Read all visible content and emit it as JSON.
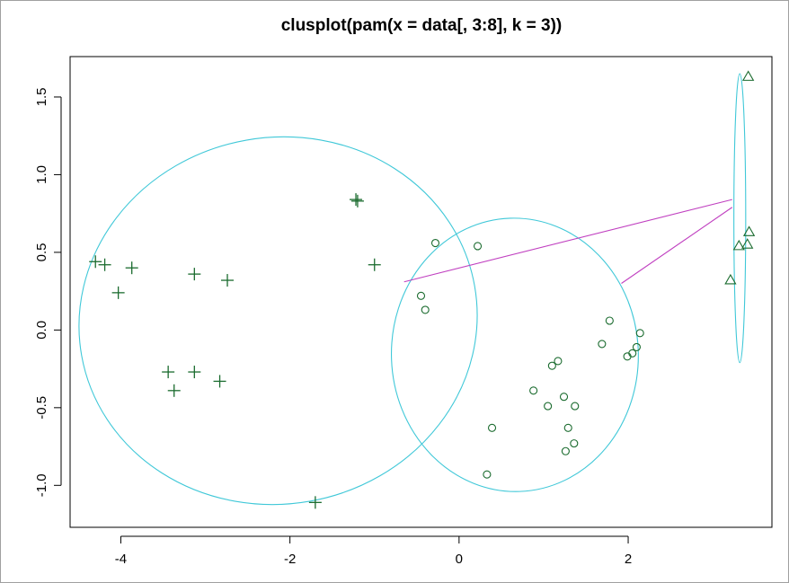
{
  "chart_data": {
    "type": "scatter",
    "title": "clusplot(pam(x = data[, 3:8], k = 3))",
    "xlabel": "",
    "ylabel": "",
    "xlim": [
      -4.6,
      3.7
    ],
    "ylim": [
      -1.27,
      1.76
    ],
    "x_ticks": [
      -4,
      -2,
      0,
      2
    ],
    "x_tick_labels": [
      "-4",
      "-2",
      "0",
      "2"
    ],
    "y_ticks": [
      -1.0,
      -0.5,
      0.0,
      0.5,
      1.0,
      1.5
    ],
    "y_tick_labels": [
      "-1.0",
      "-0.5",
      "0.0",
      "0.5",
      "1.0",
      "1.5"
    ],
    "grid": false,
    "colors": {
      "points": "#1a6b2e",
      "ellipse": "#40c8d8",
      "connector": "#c040c0",
      "axis": "#000000"
    },
    "series": [
      {
        "marker": "plus",
        "points": [
          [
            -4.3,
            0.44
          ],
          [
            -4.19,
            0.42
          ],
          [
            -3.87,
            0.4
          ],
          [
            -4.03,
            0.24
          ],
          [
            -3.13,
            0.36
          ],
          [
            -2.74,
            0.32
          ],
          [
            -1.22,
            0.84
          ],
          [
            -1.2,
            0.83
          ],
          [
            -1.0,
            0.42
          ],
          [
            -3.44,
            -0.27
          ],
          [
            -3.37,
            -0.39
          ],
          [
            -3.13,
            -0.27
          ],
          [
            -2.83,
            -0.33
          ],
          [
            -1.7,
            -1.11
          ]
        ]
      },
      {
        "marker": "circle",
        "points": [
          [
            -0.28,
            0.56
          ],
          [
            0.22,
            0.54
          ],
          [
            -0.45,
            0.22
          ],
          [
            -0.4,
            0.13
          ],
          [
            1.78,
            0.06
          ],
          [
            2.14,
            -0.02
          ],
          [
            1.69,
            -0.09
          ],
          [
            2.1,
            -0.11
          ],
          [
            2.05,
            -0.15
          ],
          [
            1.99,
            -0.17
          ],
          [
            1.17,
            -0.2
          ],
          [
            1.1,
            -0.23
          ],
          [
            0.88,
            -0.39
          ],
          [
            1.24,
            -0.43
          ],
          [
            1.05,
            -0.49
          ],
          [
            1.37,
            -0.49
          ],
          [
            0.39,
            -0.63
          ],
          [
            1.29,
            -0.63
          ],
          [
            1.36,
            -0.73
          ],
          [
            1.26,
            -0.78
          ],
          [
            0.33,
            -0.93
          ]
        ]
      },
      {
        "marker": "triangle",
        "points": [
          [
            3.42,
            1.63
          ],
          [
            3.43,
            0.63
          ],
          [
            3.31,
            0.54
          ],
          [
            3.41,
            0.55
          ],
          [
            3.21,
            0.32
          ]
        ]
      }
    ],
    "ellipses": [
      {
        "cx": -2.14,
        "cy": 0.06,
        "rx": 2.36,
        "ry": 1.18,
        "angle_deg": -10
      },
      {
        "cx": 0.66,
        "cy": -0.16,
        "rx": 1.46,
        "ry": 0.88,
        "angle_deg": -2
      },
      {
        "cx": 3.32,
        "cy": 0.72,
        "rx": 0.07,
        "ry": 0.93,
        "angle_deg": 0
      }
    ],
    "connectors": [
      {
        "from": [
          -0.65,
          0.31
        ],
        "to": [
          3.23,
          0.84
        ]
      },
      {
        "from": [
          1.92,
          0.3
        ],
        "to": [
          3.23,
          0.79
        ]
      }
    ]
  }
}
